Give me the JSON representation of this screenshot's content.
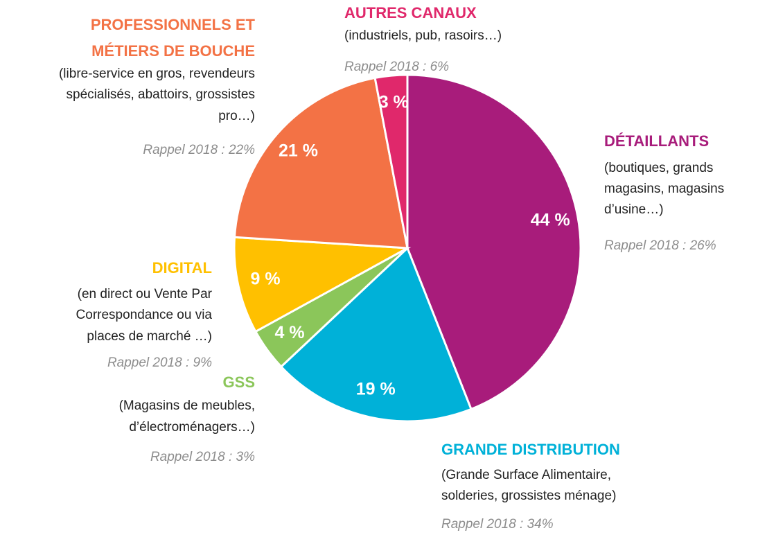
{
  "chart_data": {
    "type": "pie",
    "categories": [
      [
        "DÉTAILLANTS"
      ],
      [
        "GRANDE DISTRIBUTION"
      ],
      [
        "GSS"
      ],
      [
        "DIGITAL"
      ],
      [
        "PROFESSIONNELS ET",
        "MÉTIERS DE BOUCHE"
      ],
      [
        "AUTRES CANAUX"
      ]
    ],
    "values": [
      44,
      19,
      4,
      9,
      21,
      3
    ],
    "value_labels": [
      "44 %",
      "19 %",
      "4 %",
      "9 %",
      "21 %",
      "3 %"
    ],
    "colors": [
      "#a81c7b",
      "#00b1d8",
      "#8bc65a",
      "#ffc000",
      "#f37245",
      "#e0286b"
    ],
    "descriptions": [
      [
        "(boutiques, grands",
        "magasins, magasins",
        "d’usine…)"
      ],
      [
        "(Grande Surface Alimentaire,",
        "solderies, grossistes ménage)"
      ],
      [
        "(Magasins de meubles,",
        "d’électroménagers…)"
      ],
      [
        "(en direct ou Vente Par",
        "Correspondance ou via",
        "places de marché  …)"
      ],
      [
        "(libre-service en gros, revendeurs",
        "spécialisés, abattoirs, grossistes",
        "pro…)"
      ],
      [
        "(industriels, pub, rasoirs…)"
      ]
    ],
    "recalls": [
      "Rappel 2018 : 26%",
      "Rappel 2018 : 34%",
      "Rappel 2018 : 3%",
      "Rappel 2018 : 9%",
      "Rappel 2018 : 22%",
      "Rappel 2018 : 6%"
    ]
  }
}
